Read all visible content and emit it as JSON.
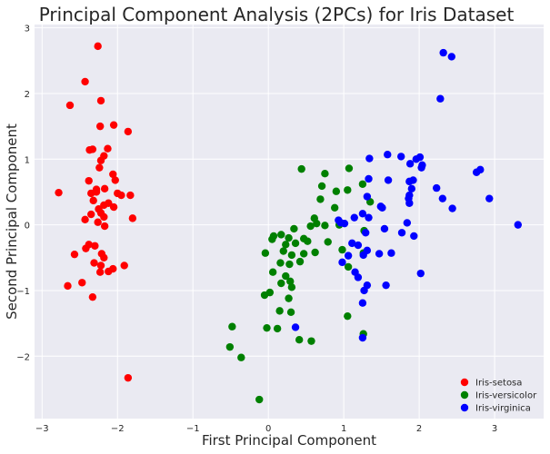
{
  "chart_data": {
    "type": "scatter",
    "title": "Principal Component Analysis (2PCs) for Iris Dataset",
    "xlabel": "First Principal Component",
    "ylabel": "Second Principal Component",
    "xlim": [
      -3.1,
      3.65
    ],
    "ylim": [
      -2.95,
      3.05
    ],
    "xticks": [
      -3,
      -2,
      -1,
      0,
      1,
      2,
      3
    ],
    "yticks": [
      -2,
      -1,
      0,
      1,
      2,
      3
    ],
    "xtick_labels": [
      "−3",
      "−2",
      "−1",
      "0",
      "1",
      "2",
      "3"
    ],
    "ytick_labels": [
      "−2",
      "−1",
      "0",
      "1",
      "2",
      "3"
    ],
    "grid": true,
    "legend_position": "bottom-right",
    "background": "#eaeaf2",
    "series": [
      {
        "name": "Iris-setosa",
        "color": "#ff0000",
        "points": [
          [
            -2.26,
            2.72
          ],
          [
            -2.43,
            2.18
          ],
          [
            -2.63,
            1.82
          ],
          [
            -2.22,
            1.89
          ],
          [
            -2.23,
            1.5
          ],
          [
            -2.05,
            1.52
          ],
          [
            -1.86,
            1.42
          ],
          [
            -2.13,
            1.16
          ],
          [
            -2.33,
            1.15
          ],
          [
            -2.37,
            1.14
          ],
          [
            -2.18,
            1.05
          ],
          [
            -2.22,
            0.98
          ],
          [
            -2.24,
            0.87
          ],
          [
            -2.06,
            0.77
          ],
          [
            -2.38,
            0.67
          ],
          [
            -2.03,
            0.68
          ],
          [
            -2.28,
            0.54
          ],
          [
            -2.17,
            0.55
          ],
          [
            -2.0,
            0.48
          ],
          [
            -2.78,
            0.49
          ],
          [
            -2.35,
            0.48
          ],
          [
            -2.28,
            0.5
          ],
          [
            -1.95,
            0.45
          ],
          [
            -1.83,
            0.45
          ],
          [
            -2.32,
            0.37
          ],
          [
            -2.12,
            0.33
          ],
          [
            -2.18,
            0.3
          ],
          [
            -2.05,
            0.27
          ],
          [
            -2.25,
            0.24
          ],
          [
            -2.22,
            0.18
          ],
          [
            -2.35,
            0.16
          ],
          [
            -2.18,
            0.12
          ],
          [
            -1.8,
            0.1
          ],
          [
            -2.43,
            0.08
          ],
          [
            -2.26,
            0.04
          ],
          [
            -2.17,
            -0.02
          ],
          [
            -2.38,
            -0.3
          ],
          [
            -2.3,
            -0.32
          ],
          [
            -2.42,
            -0.36
          ],
          [
            -2.57,
            -0.45
          ],
          [
            -2.21,
            -0.44
          ],
          [
            -2.18,
            -0.5
          ],
          [
            -2.31,
            -0.58
          ],
          [
            -2.22,
            -0.62
          ],
          [
            -1.91,
            -0.62
          ],
          [
            -2.06,
            -0.67
          ],
          [
            -2.12,
            -0.71
          ],
          [
            -2.23,
            -0.72
          ],
          [
            -2.47,
            -0.88
          ],
          [
            -2.66,
            -0.93
          ],
          [
            -2.33,
            -1.1
          ],
          [
            -1.86,
            -2.33
          ]
        ]
      },
      {
        "name": "Iris-versicolor",
        "color": "#008000",
        "points": [
          [
            0.44,
            0.85
          ],
          [
            0.75,
            0.78
          ],
          [
            1.07,
            0.86
          ],
          [
            0.71,
            0.59
          ],
          [
            0.9,
            0.51
          ],
          [
            1.05,
            0.53
          ],
          [
            1.25,
            0.62
          ],
          [
            0.69,
            0.39
          ],
          [
            1.35,
            0.35
          ],
          [
            0.88,
            0.26
          ],
          [
            0.61,
            0.1
          ],
          [
            0.64,
            0.02
          ],
          [
            0.56,
            -0.02
          ],
          [
            0.75,
            -0.01
          ],
          [
            0.94,
            0.0
          ],
          [
            0.34,
            -0.06
          ],
          [
            0.17,
            -0.15
          ],
          [
            0.07,
            -0.17
          ],
          [
            0.05,
            -0.22
          ],
          [
            0.47,
            -0.21
          ],
          [
            0.52,
            -0.25
          ],
          [
            0.27,
            -0.2
          ],
          [
            0.36,
            -0.28
          ],
          [
            0.79,
            -0.26
          ],
          [
            1.27,
            -0.09
          ],
          [
            0.23,
            -0.3
          ],
          [
            0.2,
            -0.4
          ],
          [
            -0.04,
            -0.43
          ],
          [
            0.31,
            -0.46
          ],
          [
            0.47,
            -0.44
          ],
          [
            0.62,
            -0.42
          ],
          [
            0.98,
            -0.38
          ],
          [
            1.26,
            -0.43
          ],
          [
            0.42,
            -0.56
          ],
          [
            0.16,
            -0.58
          ],
          [
            0.28,
            -0.6
          ],
          [
            0.06,
            -0.72
          ],
          [
            1.06,
            -0.64
          ],
          [
            0.23,
            -0.78
          ],
          [
            0.29,
            -0.86
          ],
          [
            0.17,
            -0.89
          ],
          [
            0.31,
            -0.95
          ],
          [
            0.02,
            -1.03
          ],
          [
            -0.05,
            -1.07
          ],
          [
            0.27,
            -1.12
          ],
          [
            0.3,
            -1.33
          ],
          [
            0.15,
            -1.31
          ],
          [
            1.05,
            -1.39
          ],
          [
            -0.02,
            -1.57
          ],
          [
            0.12,
            -1.58
          ],
          [
            1.26,
            -1.66
          ],
          [
            0.41,
            -1.75
          ],
          [
            0.57,
            -1.77
          ],
          [
            -0.48,
            -1.55
          ],
          [
            -0.51,
            -1.86
          ],
          [
            -0.36,
            -2.02
          ],
          [
            -0.12,
            -2.66
          ]
        ]
      },
      {
        "name": "Iris-virginica",
        "color": "#0000ff",
        "points": [
          [
            2.32,
            2.62
          ],
          [
            2.43,
            2.56
          ],
          [
            2.28,
            1.92
          ],
          [
            1.58,
            1.07
          ],
          [
            1.76,
            1.04
          ],
          [
            2.01,
            1.03
          ],
          [
            1.88,
            0.93
          ],
          [
            2.04,
            0.91
          ],
          [
            1.96,
            1.0
          ],
          [
            1.34,
            1.01
          ],
          [
            2.03,
            0.87
          ],
          [
            2.81,
            0.84
          ],
          [
            2.76,
            0.8
          ],
          [
            1.92,
            0.68
          ],
          [
            1.87,
            0.66
          ],
          [
            2.23,
            0.56
          ],
          [
            1.33,
            0.7
          ],
          [
            1.59,
            0.68
          ],
          [
            1.9,
            0.55
          ],
          [
            1.87,
            0.45
          ],
          [
            2.31,
            0.4
          ],
          [
            2.93,
            0.4
          ],
          [
            1.86,
            0.4
          ],
          [
            1.31,
            0.43
          ],
          [
            1.87,
            0.33
          ],
          [
            2.44,
            0.25
          ],
          [
            1.49,
            0.28
          ],
          [
            1.51,
            0.26
          ],
          [
            1.25,
            0.17
          ],
          [
            1.33,
            0.11
          ],
          [
            1.14,
            0.11
          ],
          [
            0.96,
            0.03
          ],
          [
            1.01,
            0.02
          ],
          [
            0.93,
            0.07
          ],
          [
            1.84,
            0.03
          ],
          [
            3.31,
            0.0
          ],
          [
            1.29,
            -0.12
          ],
          [
            1.54,
            -0.06
          ],
          [
            1.77,
            -0.12
          ],
          [
            1.93,
            -0.17
          ],
          [
            1.11,
            -0.28
          ],
          [
            1.19,
            -0.31
          ],
          [
            1.47,
            -0.44
          ],
          [
            1.31,
            -0.39
          ],
          [
            1.26,
            -0.46
          ],
          [
            1.06,
            -0.47
          ],
          [
            1.63,
            -0.43
          ],
          [
            0.98,
            -0.57
          ],
          [
            1.15,
            -0.72
          ],
          [
            2.02,
            -0.74
          ],
          [
            1.19,
            -0.8
          ],
          [
            1.31,
            -0.92
          ],
          [
            1.56,
            -0.92
          ],
          [
            1.27,
            -1.0
          ],
          [
            1.25,
            -1.19
          ],
          [
            0.36,
            -1.56
          ],
          [
            1.25,
            -1.72
          ]
        ]
      }
    ]
  }
}
